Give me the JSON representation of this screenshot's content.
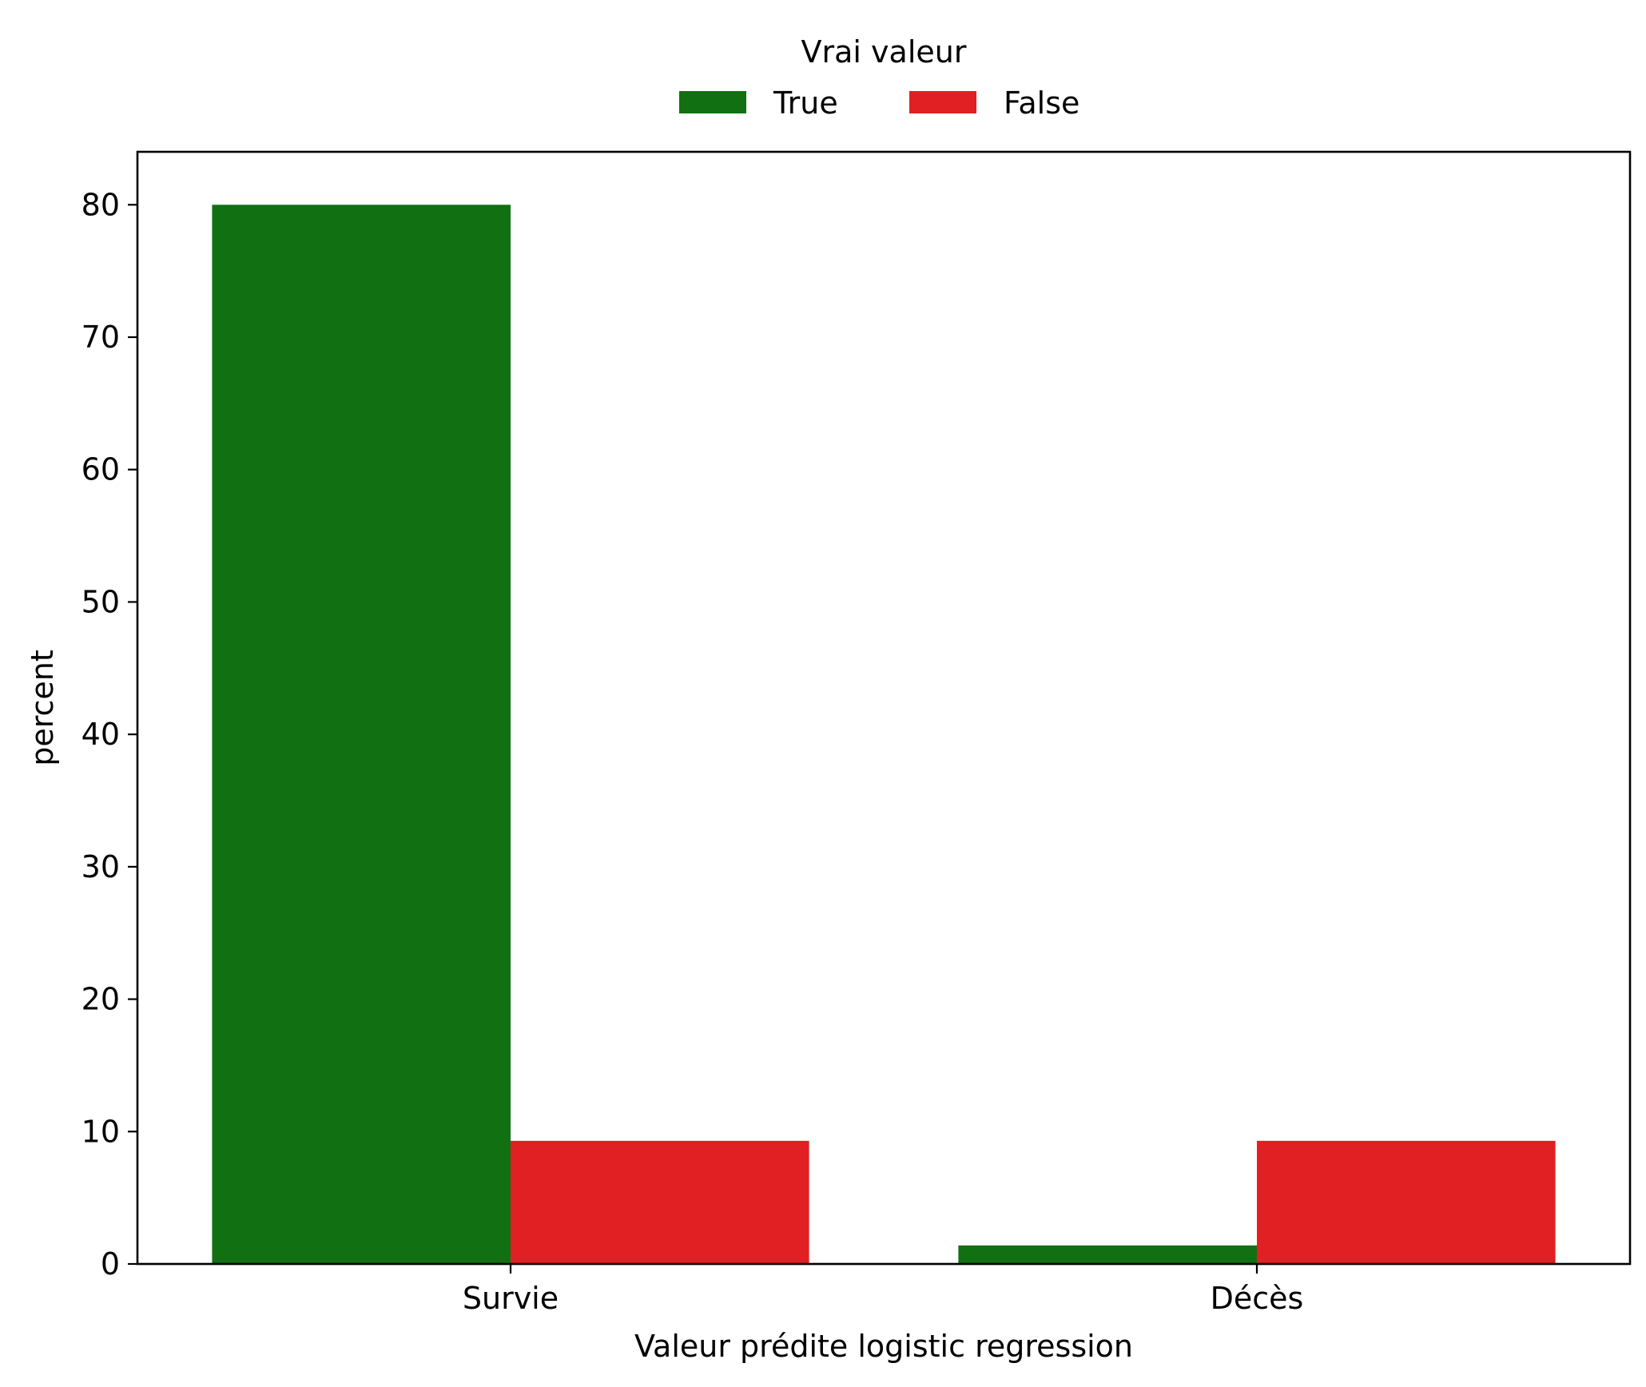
{
  "chart_data": {
    "type": "bar",
    "categories": [
      "Survie",
      "Décès"
    ],
    "series": [
      {
        "name": "True",
        "values": [
          80.0,
          1.4
        ],
        "color": "#117011"
      },
      {
        "name": "False",
        "values": [
          9.3,
          9.3
        ],
        "color": "#e02022"
      }
    ],
    "xlabel": "Valeur prédite logistic regression",
    "ylabel": "percent",
    "ylim": [
      0,
      84
    ],
    "yticks": [
      0,
      10,
      20,
      30,
      40,
      50,
      60,
      70,
      80
    ],
    "legend": {
      "title": "Vrai valeur",
      "entries": [
        "True",
        "False"
      ],
      "placement": "top-center"
    },
    "grid": false
  }
}
